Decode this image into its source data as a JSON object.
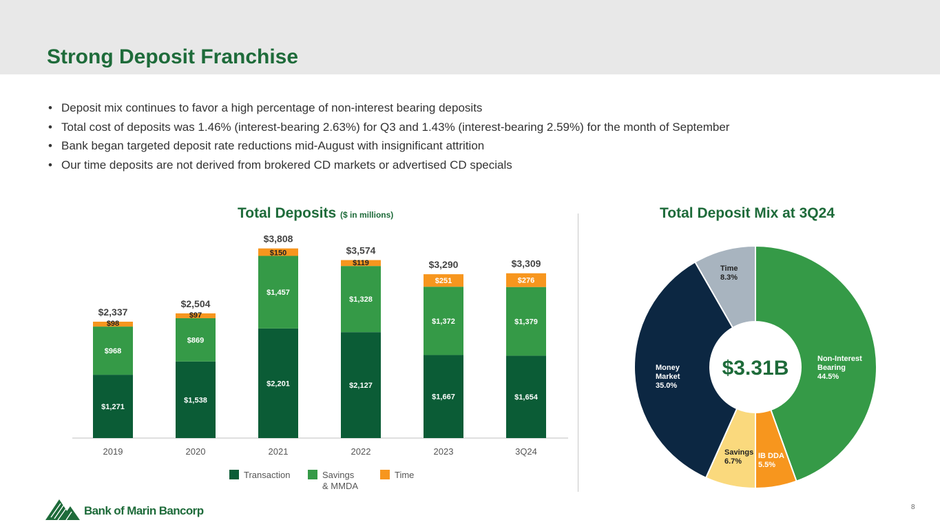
{
  "slide": {
    "title": "Strong Deposit Franchise",
    "page_number": "8",
    "logo_text": "Bank of Marin Bancorp"
  },
  "bullets": [
    "Deposit mix continues to favor a high percentage of non-interest bearing deposits",
    "Total cost of deposits was 1.46% (interest-bearing 2.63%) for Q3 and 1.43% (interest-bearing 2.59%) for the month of September",
    "Bank began targeted deposit rate reductions mid-August with insignificant attrition",
    "Our time deposits are not derived from brokered CD markets or advertised CD specials"
  ],
  "colors": {
    "transaction": "#0b5c36",
    "savings": "#359a47",
    "time": "#f7961e",
    "money_market": "#0c2742",
    "savings_pie": "#fad97d",
    "time_pie": "#a8b4bf",
    "title_green": "#1e6b3a"
  },
  "chart_data": [
    {
      "type": "bar",
      "stacked": true,
      "title": "Total Deposits",
      "subtitle": "($ in millions)",
      "categories": [
        "2019",
        "2020",
        "2021",
        "2022",
        "2023",
        "3Q24"
      ],
      "series": [
        {
          "name": "Transaction",
          "values": [
            1271,
            1538,
            2201,
            2127,
            1667,
            1654
          ],
          "labels": [
            "$1,271",
            "$1,538",
            "$2,201",
            "$2,127",
            "$1,667",
            "$1,654"
          ]
        },
        {
          "name": "Savings\n& MMDA",
          "values": [
            968,
            869,
            1457,
            1328,
            1372,
            1379
          ],
          "labels": [
            "$968",
            "$869",
            "$1,457",
            "$1,328",
            "$1,372",
            "$1,379"
          ]
        },
        {
          "name": "Time",
          "values": [
            98,
            97,
            150,
            119,
            251,
            276
          ],
          "labels": [
            "$98",
            "$97",
            "$150",
            "$119",
            "$251",
            "$276"
          ]
        }
      ],
      "totals": [
        2337,
        2504,
        3808,
        3574,
        3290,
        3309
      ],
      "total_labels": [
        "$2,337",
        "$2,504",
        "$3,808",
        "$3,574",
        "$3,290",
        "$3,309"
      ],
      "legend": [
        "Transaction",
        "Savings & MMDA",
        "Time"
      ],
      "legend_position": "bottom",
      "ylim": [
        0,
        3900
      ],
      "grid": false
    },
    {
      "type": "pie",
      "donut": true,
      "title": "Total Deposit Mix at 3Q24",
      "center_label": "$3.31B",
      "slices": [
        {
          "name": "Non-Interest Bearing",
          "value": 44.5,
          "label": "44.5%",
          "color_key": "savings"
        },
        {
          "name": "IB DDA",
          "value": 5.5,
          "label": "5.5%",
          "color_key": "time"
        },
        {
          "name": "Savings",
          "value": 6.7,
          "label": "6.7%",
          "color_key": "savings_pie"
        },
        {
          "name": "Money Market",
          "value": 35.0,
          "label": "35.0%",
          "color_key": "money_market"
        },
        {
          "name": "Time",
          "value": 8.3,
          "label": "8.3%",
          "color_key": "time_pie"
        }
      ]
    }
  ]
}
